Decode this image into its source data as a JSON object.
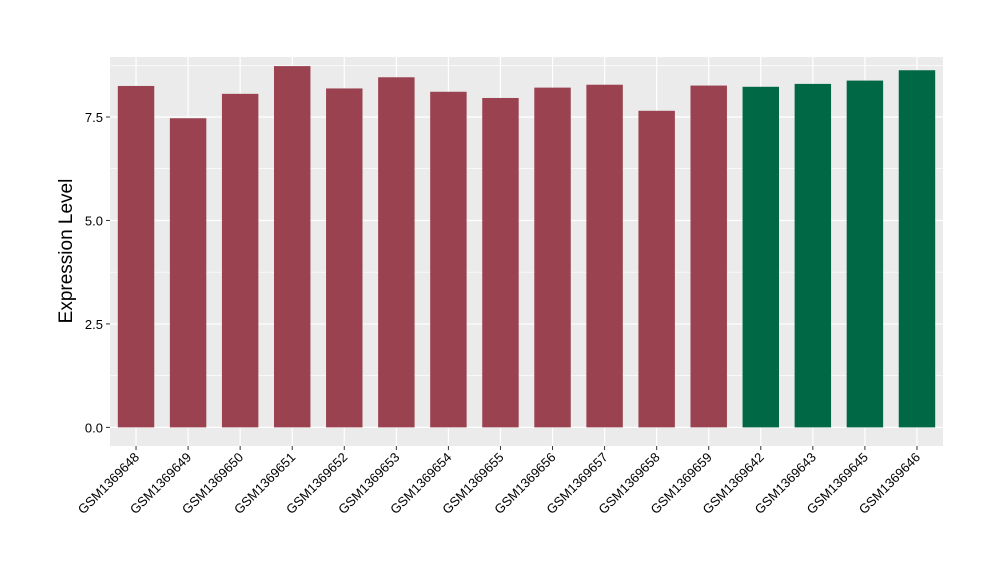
{
  "chart_data": {
    "type": "bar",
    "title": "",
    "xlabel": "",
    "ylabel": "Expression Level",
    "ylim": [
      -0.45,
      8.95
    ],
    "yticks": [
      0.0,
      2.5,
      5.0,
      7.5
    ],
    "ytick_labels": [
      "0.0",
      "2.5",
      "5.0",
      "7.5"
    ],
    "grid": true,
    "categories": [
      "GSM1369648",
      "GSM1369649",
      "GSM1369650",
      "GSM1369651",
      "GSM1369652",
      "GSM1369653",
      "GSM1369654",
      "GSM1369655",
      "GSM1369656",
      "GSM1369657",
      "GSM1369658",
      "GSM1369659",
      "GSM1369642",
      "GSM1369643",
      "GSM1369645",
      "GSM1369646"
    ],
    "values": [
      8.25,
      7.47,
      8.06,
      8.73,
      8.19,
      8.46,
      8.11,
      7.96,
      8.21,
      8.28,
      7.65,
      8.26,
      8.23,
      8.3,
      8.38,
      8.63
    ],
    "bar_groups": [
      "group1",
      "group1",
      "group1",
      "group1",
      "group1",
      "group1",
      "group1",
      "group1",
      "group1",
      "group1",
      "group1",
      "group1",
      "group2",
      "group2",
      "group2",
      "group2"
    ],
    "colors": {
      "group1": "#9a4250",
      "group2": "#016845",
      "panel_background": "#ebebeb",
      "gridline": "#ffffff",
      "axis_text": "#000000"
    }
  }
}
